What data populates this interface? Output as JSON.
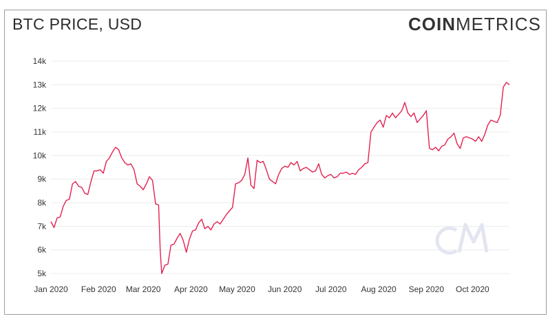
{
  "header": {
    "title": "BTC PRICE, USD",
    "logo_bold": "COIN",
    "logo_light": "METRICS"
  },
  "colors": {
    "line": "#e3204f",
    "grid": "#ececec",
    "watermark": "#e3e6f0"
  },
  "chart_data": {
    "type": "line",
    "title": "BTC PRICE, USD",
    "xlabel": "",
    "ylabel": "",
    "ylim": [
      5000,
      14000
    ],
    "yticks": [
      5000,
      6000,
      7000,
      8000,
      9000,
      10000,
      11000,
      12000,
      13000,
      14000
    ],
    "ytick_labels": [
      "5k",
      "6k",
      "7k",
      "8k",
      "9k",
      "10k",
      "11k",
      "12k",
      "13k",
      "14k"
    ],
    "xlim": [
      "2020-01-01",
      "2020-10-25"
    ],
    "xticks": [
      "2020-01-01",
      "2020-02-01",
      "2020-03-01",
      "2020-04-01",
      "2020-05-01",
      "2020-06-01",
      "2020-07-01",
      "2020-08-01",
      "2020-09-01",
      "2020-10-01"
    ],
    "xtick_labels": [
      "Jan 2020",
      "Feb 2020",
      "Mar 2020",
      "Apr 2020",
      "May 2020",
      "Jun 2020",
      "Jul 2020",
      "Aug 2020",
      "Sep 2020",
      "Oct 2020"
    ],
    "grid": true,
    "series": [
      {
        "x": [
          "2020-01-01",
          "2020-01-03",
          "2020-01-05",
          "2020-01-07",
          "2020-01-09",
          "2020-01-11",
          "2020-01-13",
          "2020-01-15",
          "2020-01-17",
          "2020-01-19",
          "2020-01-21",
          "2020-01-23",
          "2020-01-25",
          "2020-01-27",
          "2020-01-29",
          "2020-01-31",
          "2020-02-02",
          "2020-02-04",
          "2020-02-06",
          "2020-02-08",
          "2020-02-10",
          "2020-02-12",
          "2020-02-14",
          "2020-02-16",
          "2020-02-18",
          "2020-02-20",
          "2020-02-22",
          "2020-02-24",
          "2020-02-26",
          "2020-02-28",
          "2020-03-01",
          "2020-03-03",
          "2020-03-05",
          "2020-03-07",
          "2020-03-09",
          "2020-03-11",
          "2020-03-12",
          "2020-03-13",
          "2020-03-15",
          "2020-03-17",
          "2020-03-19",
          "2020-03-21",
          "2020-03-23",
          "2020-03-25",
          "2020-03-27",
          "2020-03-29",
          "2020-03-31",
          "2020-04-02",
          "2020-04-04",
          "2020-04-06",
          "2020-04-08",
          "2020-04-10",
          "2020-04-12",
          "2020-04-14",
          "2020-04-16",
          "2020-04-18",
          "2020-04-20",
          "2020-04-22",
          "2020-04-24",
          "2020-04-26",
          "2020-04-28",
          "2020-04-30",
          "2020-05-02",
          "2020-05-04",
          "2020-05-06",
          "2020-05-08",
          "2020-05-10",
          "2020-05-12",
          "2020-05-14",
          "2020-05-16",
          "2020-05-18",
          "2020-05-20",
          "2020-05-22",
          "2020-05-24",
          "2020-05-26",
          "2020-05-28",
          "2020-05-30",
          "2020-06-01",
          "2020-06-03",
          "2020-06-05",
          "2020-06-07",
          "2020-06-09",
          "2020-06-11",
          "2020-06-13",
          "2020-06-15",
          "2020-06-17",
          "2020-06-19",
          "2020-06-21",
          "2020-06-23",
          "2020-06-25",
          "2020-06-27",
          "2020-06-29",
          "2020-07-01",
          "2020-07-03",
          "2020-07-05",
          "2020-07-07",
          "2020-07-09",
          "2020-07-11",
          "2020-07-13",
          "2020-07-15",
          "2020-07-17",
          "2020-07-19",
          "2020-07-21",
          "2020-07-23",
          "2020-07-25",
          "2020-07-27",
          "2020-07-29",
          "2020-07-31",
          "2020-08-02",
          "2020-08-04",
          "2020-08-06",
          "2020-08-08",
          "2020-08-10",
          "2020-08-12",
          "2020-08-14",
          "2020-08-16",
          "2020-08-18",
          "2020-08-20",
          "2020-08-22",
          "2020-08-24",
          "2020-08-26",
          "2020-08-28",
          "2020-08-30",
          "2020-09-01",
          "2020-09-03",
          "2020-09-05",
          "2020-09-07",
          "2020-09-09",
          "2020-09-11",
          "2020-09-13",
          "2020-09-15",
          "2020-09-17",
          "2020-09-19",
          "2020-09-21",
          "2020-09-23",
          "2020-09-25",
          "2020-09-27",
          "2020-09-29",
          "2020-10-01",
          "2020-10-03",
          "2020-10-05",
          "2020-10-07",
          "2020-10-09",
          "2020-10-11",
          "2020-10-13",
          "2020-10-15",
          "2020-10-17",
          "2020-10-19",
          "2020-10-21",
          "2020-10-23",
          "2020-10-25"
        ],
        "y": [
          7200,
          6950,
          7350,
          7400,
          7850,
          8100,
          8150,
          8800,
          8900,
          8700,
          8650,
          8400,
          8350,
          8900,
          9350,
          9350,
          9400,
          9250,
          9750,
          9900,
          10150,
          10350,
          10250,
          9900,
          9700,
          9600,
          9650,
          9400,
          8800,
          8700,
          8550,
          8800,
          9100,
          8950,
          7950,
          7900,
          6000,
          5000,
          5350,
          5400,
          6200,
          6250,
          6500,
          6700,
          6400,
          5900,
          6450,
          6800,
          6850,
          7150,
          7300,
          6900,
          7000,
          6850,
          7100,
          7200,
          7100,
          7300,
          7500,
          7650,
          7800,
          8800,
          8850,
          8950,
          9200,
          9900,
          8750,
          8600,
          9800,
          9700,
          9750,
          9400,
          9000,
          8900,
          8800,
          9200,
          9450,
          9550,
          9500,
          9700,
          9600,
          9750,
          9350,
          9450,
          9500,
          9400,
          9300,
          9350,
          9650,
          9200,
          9050,
          9150,
          9200,
          9050,
          9100,
          9250,
          9250,
          9300,
          9200,
          9250,
          9200,
          9400,
          9500,
          9650,
          9700,
          11000,
          11200,
          11400,
          11500,
          11200,
          11700,
          11600,
          11800,
          11600,
          11750,
          11900,
          12250,
          11800,
          11650,
          11800,
          11400,
          11550,
          11700,
          11900,
          10300,
          10250,
          10350,
          10200,
          10400,
          10450,
          10700,
          10800,
          10950,
          10500,
          10300,
          10750,
          10800,
          10750,
          10700,
          10600,
          10800,
          10600,
          10900,
          11300,
          11500,
          11450,
          11400,
          11700,
          12900,
          13100,
          13000
        ]
      }
    ]
  }
}
